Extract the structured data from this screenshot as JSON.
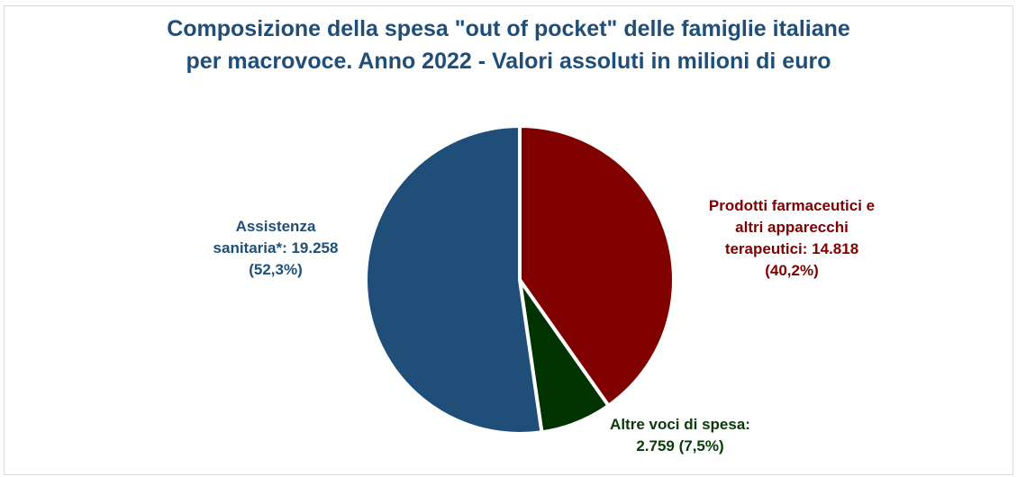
{
  "chart_data": {
    "type": "pie",
    "title_lines": [
      "Composizione della spesa \"out of pocket\" delle famiglie italiane",
      "per macrovoce. Anno 2022 - Valori assoluti in milioni di euro"
    ],
    "slices": [
      {
        "category": "Prodotti farmaceutici e altri apparecchi terapeutici",
        "value": 14818,
        "percent": 40.2,
        "color": "#800000",
        "label_lines": [
          "Prodotti farmaceutici e",
          "altri apparecchi",
          "terapeutici: 14.818",
          "(40,2%)"
        ]
      },
      {
        "category": "Altre voci di spesa",
        "value": 2759,
        "percent": 7.5,
        "color": "#003300",
        "label_lines": [
          "Altre voci di spesa:",
          "2.759 (7,5%)"
        ]
      },
      {
        "category": "Assistenza sanitaria*",
        "value": 19258,
        "percent": 52.3,
        "color": "#1f4e79",
        "label_lines": [
          "Assistenza",
          "sanitaria*: 19.258",
          "(52,3%)"
        ]
      }
    ]
  }
}
